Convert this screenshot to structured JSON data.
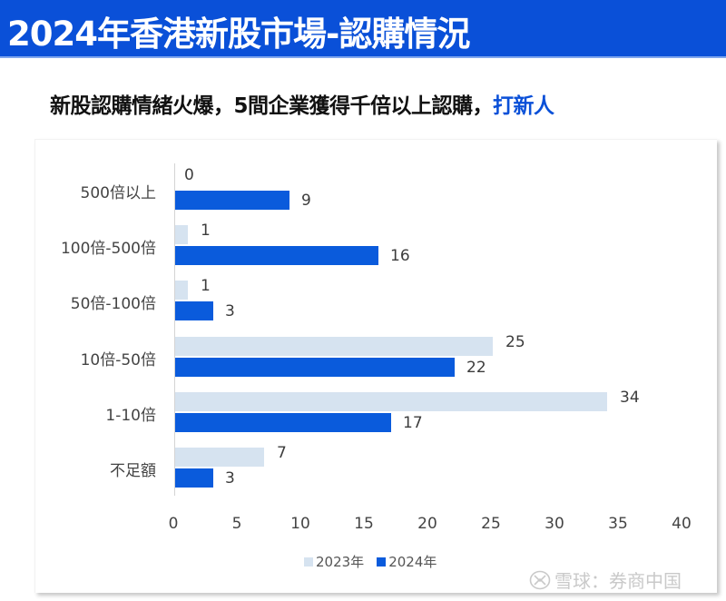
{
  "header": {
    "title": "2024年香港新股市場-認購情況"
  },
  "subtitle": {
    "text_main": "新股認購情緒火爆，5間企業獲得千倍以上認購，",
    "text_highlight": "打新人"
  },
  "colors": {
    "header_bg": "#0a50d8",
    "series_2023": "#d6e3f0",
    "series_2024": "#0a5bdc",
    "highlight_text": "#0a50d8"
  },
  "legend": {
    "items": [
      {
        "label": "2023年",
        "color": "#d6e3f0"
      },
      {
        "label": "2024年",
        "color": "#0a5bdc"
      }
    ]
  },
  "axis": {
    "ticks": [
      "0",
      "5",
      "10",
      "15",
      "20",
      "25",
      "30",
      "35",
      "40"
    ]
  },
  "categories": [
    {
      "label": "500倍以上",
      "v2023": "0",
      "v2024": "9"
    },
    {
      "label": "100倍-500倍",
      "v2023": "1",
      "v2024": "16"
    },
    {
      "label": "50倍-100倍",
      "v2023": "1",
      "v2024": "3"
    },
    {
      "label": "10倍-50倍",
      "v2023": "25",
      "v2024": "22"
    },
    {
      "label": "1-10倍",
      "v2023": "34",
      "v2024": "17"
    },
    {
      "label": "不足額",
      "v2023": "7",
      "v2024": "3"
    }
  ],
  "watermark": {
    "text": "雪球：券商中国",
    "icon": "snowball-logo-icon"
  },
  "chart_data": {
    "type": "bar",
    "orientation": "horizontal",
    "title": "2024年香港新股市場-認購情況",
    "subtitle": "新股認購情緒火爆，5間企業獲得千倍以上認購，打新人",
    "categories": [
      "500倍以上",
      "100倍-500倍",
      "50倍-100倍",
      "10倍-50倍",
      "1-10倍",
      "不足額"
    ],
    "series": [
      {
        "name": "2023年",
        "color": "#d6e3f0",
        "values": [
          0,
          1,
          1,
          25,
          34,
          7
        ]
      },
      {
        "name": "2024年",
        "color": "#0a5bdc",
        "values": [
          9,
          16,
          3,
          22,
          17,
          3
        ]
      }
    ],
    "xlabel": "",
    "ylabel": "",
    "xlim": [
      0,
      40
    ],
    "xticks": [
      0,
      5,
      10,
      15,
      20,
      25,
      30,
      35,
      40
    ],
    "grid": false,
    "data_labels": true,
    "legend_position": "bottom"
  }
}
